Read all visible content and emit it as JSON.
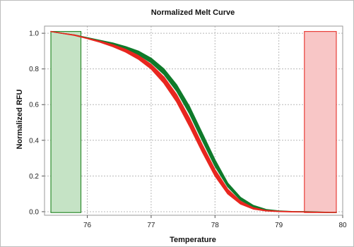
{
  "chart_data": {
    "type": "line",
    "title": "Normalized Melt Curve",
    "xlabel": "Temperature",
    "ylabel": "Normalized RFU",
    "xlim": [
      75.33,
      80.0
    ],
    "ylim": [
      -0.02,
      1.04
    ],
    "x_ticks": [
      76,
      77,
      78,
      79,
      80
    ],
    "x_tick_labels": [
      "76",
      "77",
      "78",
      "79",
      "80"
    ],
    "y_ticks": [
      0.0,
      0.2,
      0.4,
      0.6,
      0.8,
      1.0
    ],
    "y_tick_labels": [
      "0.0",
      "0.2",
      "0.4",
      "0.6",
      "0.8",
      "1.0"
    ],
    "grid": true,
    "regions": [
      {
        "x": [
          75.43,
          75.9
        ],
        "color": "#2e8b2e",
        "fill": "#c5e3c5"
      },
      {
        "x": [
          79.4,
          79.9
        ],
        "color": "#e8403a",
        "fill": "#f8c6c6"
      }
    ],
    "series": [
      {
        "color": "#0f7a2a",
        "band_upper": {
          "x": [
            75.43,
            75.6,
            75.8,
            76.0,
            76.2,
            76.4,
            76.6,
            76.8,
            77.0,
            77.2,
            77.4,
            77.6,
            77.8,
            78.0,
            78.2,
            78.4,
            78.6,
            78.8,
            79.0,
            79.2,
            79.4,
            79.6,
            79.8,
            79.9
          ],
          "y": [
            1.01,
            1.0,
            0.99,
            0.975,
            0.96,
            0.945,
            0.925,
            0.9,
            0.86,
            0.8,
            0.71,
            0.59,
            0.44,
            0.29,
            0.16,
            0.08,
            0.035,
            0.012,
            0.004,
            0.001,
            0.0,
            -0.002,
            -0.004,
            -0.004
          ]
        },
        "band_lower": {
          "x": [
            75.43,
            75.6,
            75.8,
            76.0,
            76.2,
            76.4,
            76.6,
            76.8,
            77.0,
            77.2,
            77.4,
            77.6,
            77.8,
            78.0,
            78.2,
            78.4,
            78.6,
            78.8,
            79.0,
            79.2,
            79.4,
            79.6,
            79.8,
            79.9
          ],
          "y": [
            1.01,
            1.0,
            0.99,
            0.972,
            0.955,
            0.935,
            0.912,
            0.88,
            0.835,
            0.77,
            0.675,
            0.55,
            0.4,
            0.255,
            0.14,
            0.065,
            0.025,
            0.008,
            0.002,
            0.0,
            -0.001,
            -0.003,
            -0.004,
            -0.004
          ]
        }
      },
      {
        "color": "#e8261f",
        "band_upper": {
          "x": [
            75.43,
            75.6,
            75.8,
            76.0,
            76.2,
            76.4,
            76.6,
            76.8,
            77.0,
            77.2,
            77.4,
            77.6,
            77.8,
            78.0,
            78.2,
            78.4,
            78.6,
            78.8,
            79.0,
            79.2,
            79.4,
            79.6,
            79.8,
            79.9
          ],
          "y": [
            1.01,
            1.0,
            0.99,
            0.972,
            0.955,
            0.935,
            0.91,
            0.875,
            0.825,
            0.755,
            0.655,
            0.525,
            0.375,
            0.235,
            0.125,
            0.058,
            0.022,
            0.007,
            0.002,
            0.0,
            -0.001,
            -0.003,
            -0.004,
            -0.004
          ]
        },
        "band_lower": {
          "x": [
            75.43,
            75.6,
            75.8,
            76.0,
            76.2,
            76.4,
            76.6,
            76.8,
            77.0,
            77.2,
            77.4,
            77.6,
            77.8,
            78.0,
            78.2,
            78.4,
            78.6,
            78.8,
            79.0,
            79.2,
            79.4,
            79.6,
            79.8,
            79.9
          ],
          "y": [
            1.01,
            1.0,
            0.988,
            0.97,
            0.95,
            0.925,
            0.895,
            0.855,
            0.8,
            0.72,
            0.615,
            0.48,
            0.335,
            0.2,
            0.1,
            0.043,
            0.015,
            0.004,
            0.001,
            -0.001,
            -0.002,
            -0.003,
            -0.004,
            -0.004
          ]
        }
      }
    ]
  }
}
